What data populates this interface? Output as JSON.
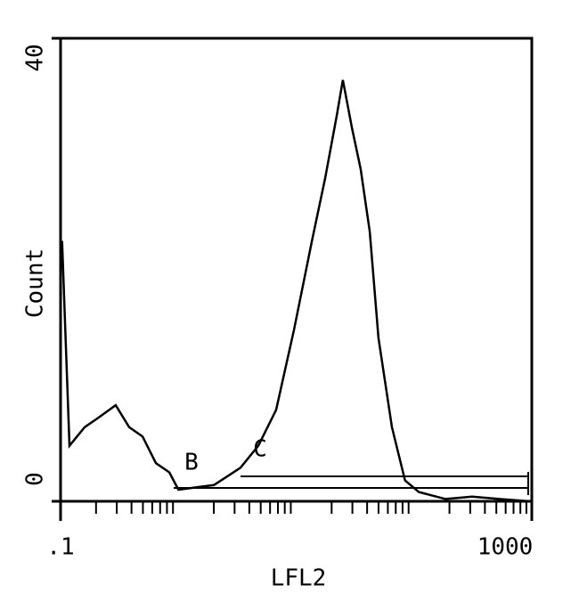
{
  "chart_data": {
    "type": "line",
    "x_label": "LFL2",
    "y_label": "Count",
    "annotations": [
      "B",
      "C"
    ],
    "log_x": true,
    "xlim": [
      0.1,
      1000
    ],
    "ylim": [
      0,
      40
    ],
    "xticks": [
      {
        "value": 0.1,
        "label": ".1"
      },
      1000
    ],
    "yticks": [
      0,
      40
    ],
    "series": [
      {
        "color": "#000000",
        "x": [
          0.103,
          0.119,
          0.16,
          0.208,
          0.294,
          0.382,
          0.496,
          0.644,
          0.838,
          1.0,
          1.41,
          2.0,
          3.37,
          4.77,
          6.76,
          9.57,
          13.6,
          17.6,
          22.1,
          24.9,
          29.7,
          35.3,
          42.1,
          50,
          65,
          84,
          110,
          185,
          311,
          525,
          966
        ],
        "values": [
          22.5,
          4.8,
          6.4,
          7.2,
          8.3,
          6.4,
          5.6,
          3.3,
          2.5,
          1,
          1.2,
          1.4,
          2.9,
          4.8,
          7.9,
          14.8,
          22.5,
          27.9,
          33.3,
          36.4,
          32.3,
          28.7,
          23.3,
          14.1,
          6.4,
          1.8,
          0.8,
          0.2,
          0.4,
          0.2,
          0
        ]
      }
    ]
  }
}
